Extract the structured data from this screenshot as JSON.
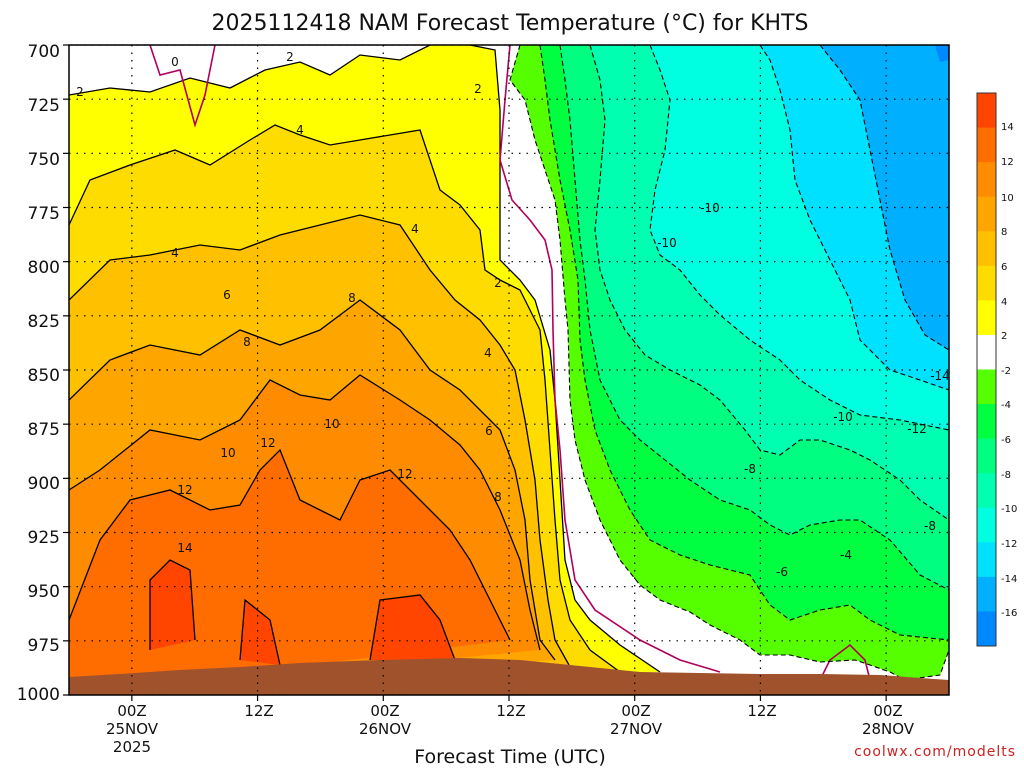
{
  "chart_data": {
    "type": "heatmap",
    "title": "2025112418 NAM Forecast Temperature (°C) for KHTS",
    "xlabel": "Forecast Time (UTC)",
    "ylabel": "",
    "y_axis": {
      "ticks": [
        "700",
        "725",
        "750",
        "775",
        "800",
        "825",
        "850",
        "875",
        "900",
        "925",
        "950",
        "975",
        "1000"
      ],
      "ylim": [
        700,
        1000
      ],
      "direction": "pressure increasing downward"
    },
    "x_axis": {
      "start": "2025-11-24 18Z",
      "end": "2025-11-28 06Z",
      "tick_labels": [
        {
          "time": "2025-11-25 00Z",
          "lines": [
            "00Z",
            "25NOV",
            "2025"
          ]
        },
        {
          "time": "2025-11-25 12Z",
          "lines": [
            "12Z"
          ]
        },
        {
          "time": "2025-11-26 00Z",
          "lines": [
            "00Z",
            "26NOV"
          ]
        },
        {
          "time": "2025-11-26 12Z",
          "lines": [
            "12Z"
          ]
        },
        {
          "time": "2025-11-27 00Z",
          "lines": [
            "00Z",
            "27NOV"
          ]
        },
        {
          "time": "2025-11-27 12Z",
          "lines": [
            "12Z"
          ]
        },
        {
          "time": "2025-11-28 00Z",
          "lines": [
            "00Z",
            "28NOV"
          ]
        }
      ]
    },
    "grid": true,
    "colorbar": {
      "placement": "right",
      "labels": [
        "14",
        "12",
        "10",
        "8",
        "6",
        "4",
        "2",
        "-2",
        "-4",
        "-6",
        "-8",
        "-10",
        "-12",
        "-14",
        "-16"
      ],
      "colors": [
        "#ff4500",
        "#ff6c00",
        "#ff8c00",
        "#ffa500",
        "#ffc000",
        "#ffdc00",
        "#ffff00",
        "#ffffff",
        "#55ff00",
        "#00ff40",
        "#00ff80",
        "#00ffb0",
        "#00ffe0",
        "#00e0ff",
        "#00b0ff",
        "#0088ff"
      ]
    },
    "contour_labels": [
      "0",
      "2",
      "4",
      "6",
      "8",
      "10",
      "12",
      "14",
      "-4",
      "-6",
      "-8",
      "-10",
      "-12",
      "-14"
    ],
    "samples": [
      {
        "time": "2025-11-25 00Z",
        "pressures": [
          700,
          750,
          800,
          850,
          900,
          950
        ],
        "temps": [
          1,
          3,
          5,
          8,
          11,
          13
        ]
      },
      {
        "time": "2025-11-25 12Z",
        "pressures": [
          700,
          750,
          800,
          850,
          900,
          950
        ],
        "temps": [
          2,
          4,
          7,
          9,
          11,
          13
        ]
      },
      {
        "time": "2025-11-26 00Z",
        "pressures": [
          700,
          750,
          800,
          850,
          900,
          950
        ],
        "temps": [
          2,
          4,
          7,
          10,
          12,
          13
        ]
      },
      {
        "time": "2025-11-26 12Z",
        "pressures": [
          700,
          750,
          800,
          850,
          900,
          950
        ],
        "temps": [
          1,
          3,
          4,
          6,
          8,
          9
        ]
      },
      {
        "time": "2025-11-27 00Z",
        "pressures": [
          700,
          750,
          800,
          850,
          900,
          950
        ],
        "temps": [
          -9,
          -10,
          -10,
          -8,
          -6,
          -1
        ]
      },
      {
        "time": "2025-11-27 12Z",
        "pressures": [
          700,
          750,
          800,
          850,
          900,
          950
        ],
        "temps": [
          -11,
          -12,
          -11,
          -9,
          -7,
          -5
        ]
      },
      {
        "time": "2025-11-28 00Z",
        "pressures": [
          700,
          750,
          800,
          850,
          900,
          950
        ],
        "temps": [
          -14,
          -14,
          -13,
          -11,
          -8,
          -5
        ]
      }
    ]
  },
  "credit": "coolwx.com/modelts"
}
